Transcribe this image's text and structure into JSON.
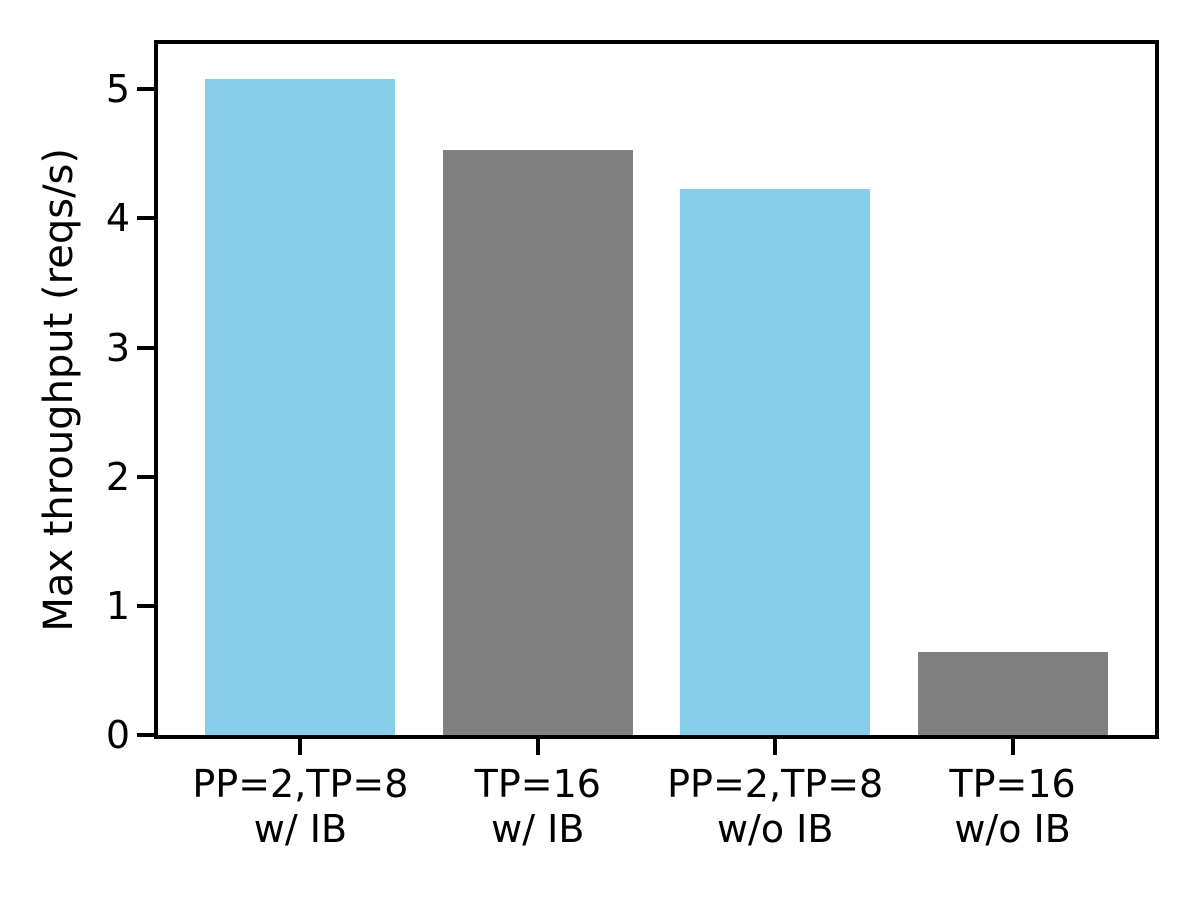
{
  "chart_data": {
    "type": "bar",
    "title": "",
    "xlabel": "",
    "ylabel": "Max throughput (reqs/s)",
    "categories": [
      "PP=2,TP=8\nw/ IB",
      "TP=16\nw/ IB",
      "PP=2,TP=8\nw/o IB",
      "TP=16\nw/o IB"
    ],
    "values": [
      5.08,
      4.53,
      4.23,
      0.64
    ],
    "bar_colors": [
      "#87ceeb",
      "#808080",
      "#87ceeb",
      "#808080"
    ],
    "ylim": [
      0,
      5.35
    ],
    "yticks": [
      0,
      1,
      2,
      3,
      4,
      5
    ],
    "x_range": [
      -0.6,
      3.6
    ],
    "bar_width_fraction": 0.8,
    "grid": false,
    "legend": "none",
    "spine_color": "#000000",
    "background_color": "#ffffff",
    "text_color": "#000000"
  }
}
